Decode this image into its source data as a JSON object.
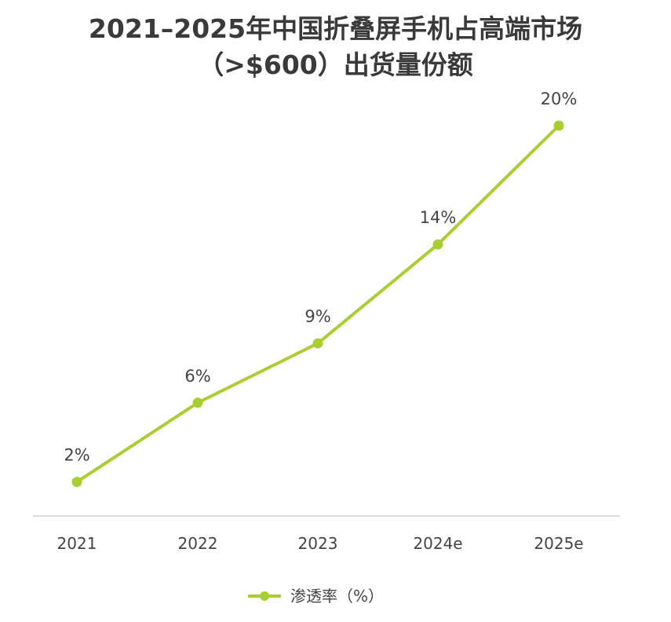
{
  "chart_data": {
    "type": "line",
    "title_lines": [
      "2021–2025年中国折叠屏手机占高端市场",
      "（>$600）出货量份额"
    ],
    "categories": [
      "2021",
      "2022",
      "2023",
      "2024e",
      "2025e"
    ],
    "series": [
      {
        "name": "渗透率（%）",
        "values": [
          2,
          6,
          9,
          14,
          20
        ],
        "data_labels": [
          "2%",
          "6%",
          "9%",
          "14%",
          "20%"
        ],
        "color": "#a8cf2f"
      }
    ],
    "ylim": [
      0,
      22
    ],
    "grid": false,
    "legend_position": "bottom-center",
    "axis_color": "#d0d0d0"
  }
}
